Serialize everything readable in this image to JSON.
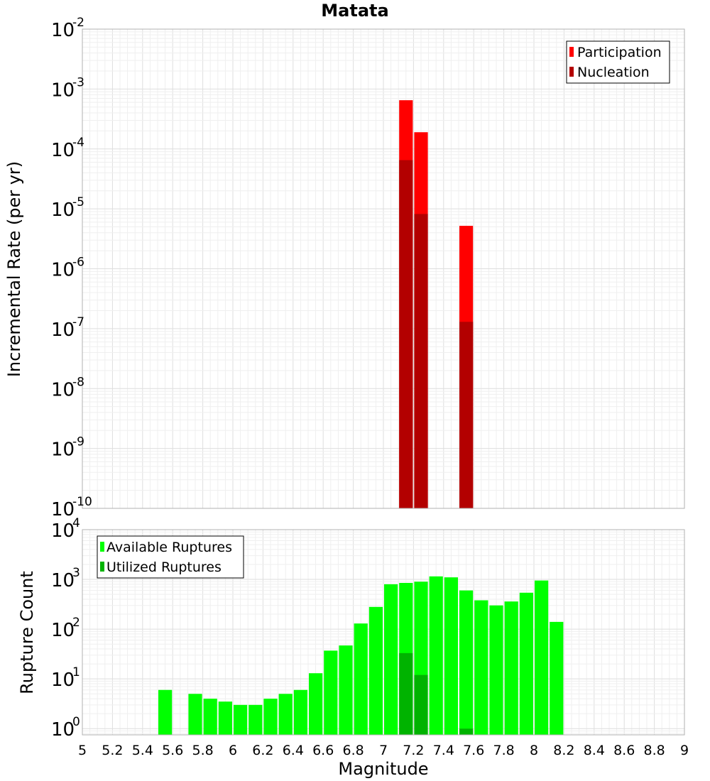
{
  "chart_data": [
    {
      "type": "bar",
      "title": "Matata",
      "xlabel": "",
      "ylabel": "Incremental Rate (per yr)",
      "y_scale": "log",
      "ylim": [
        1e-10,
        0.01
      ],
      "xlim": [
        5,
        9
      ],
      "bar_width": 0.1,
      "grid": true,
      "legend_position": "top-right",
      "y_ticks": [
        {
          "base": "10",
          "exp": "-10",
          "value": 1e-10
        },
        {
          "base": "10",
          "exp": "-9",
          "value": 1e-09
        },
        {
          "base": "10",
          "exp": "-8",
          "value": 1e-08
        },
        {
          "base": "10",
          "exp": "-7",
          "value": 1e-07
        },
        {
          "base": "10",
          "exp": "-6",
          "value": 1e-06
        },
        {
          "base": "10",
          "exp": "-5",
          "value": 1e-05
        },
        {
          "base": "10",
          "exp": "-4",
          "value": 0.0001
        },
        {
          "base": "10",
          "exp": "-3",
          "value": 0.001
        },
        {
          "base": "10",
          "exp": "-2",
          "value": 0.01
        }
      ],
      "series": [
        {
          "name": "Participation",
          "color": "#ff0000",
          "x": [
            7.15,
            7.25,
            7.55
          ],
          "values": [
            0.00065,
            0.00019,
            5.2e-06
          ]
        },
        {
          "name": "Nucleation",
          "color": "#b30000",
          "x": [
            7.15,
            7.25,
            7.55
          ],
          "values": [
            6.5e-05,
            8.2e-06,
            1.3e-07
          ]
        }
      ]
    },
    {
      "type": "bar",
      "title": "",
      "xlabel": "Magnitude",
      "ylabel": "Rupture Count",
      "y_scale": "log",
      "ylim": [
        0.75,
        10000
      ],
      "xlim": [
        5,
        9
      ],
      "bar_width": 0.1,
      "grid": true,
      "legend_position": "top-left",
      "x_ticks": [
        "5",
        "5.2",
        "5.4",
        "5.6",
        "5.8",
        "6",
        "6.2",
        "6.4",
        "6.6",
        "6.8",
        "7",
        "7.2",
        "7.4",
        "7.6",
        "7.8",
        "8",
        "8.2",
        "8.4",
        "8.6",
        "8.8",
        "9"
      ],
      "y_ticks": [
        {
          "base": "10",
          "exp": "0",
          "value": 1
        },
        {
          "base": "10",
          "exp": "1",
          "value": 10
        },
        {
          "base": "10",
          "exp": "2",
          "value": 100
        },
        {
          "base": "10",
          "exp": "3",
          "value": 1000
        },
        {
          "base": "10",
          "exp": "4",
          "value": 10000
        }
      ],
      "series": [
        {
          "name": "Available Ruptures",
          "color": "#00ff00",
          "x": [
            5.55,
            5.75,
            5.85,
            5.95,
            6.05,
            6.15,
            6.25,
            6.35,
            6.45,
            6.55,
            6.65,
            6.75,
            6.85,
            6.95,
            7.05,
            7.15,
            7.25,
            7.35,
            7.45,
            7.55,
            7.65,
            7.75,
            7.85,
            7.95,
            8.05,
            8.15
          ],
          "values": [
            6,
            5,
            4,
            3.5,
            3,
            3,
            4,
            5,
            6,
            13,
            37,
            47,
            130,
            280,
            800,
            850,
            900,
            1150,
            1100,
            600,
            380,
            300,
            360,
            540,
            950,
            140
          ]
        },
        {
          "name": "Utilized Ruptures",
          "color": "#00b300",
          "x": [
            7.15,
            7.25,
            7.55
          ],
          "values": [
            33,
            12,
            1
          ]
        }
      ]
    }
  ]
}
